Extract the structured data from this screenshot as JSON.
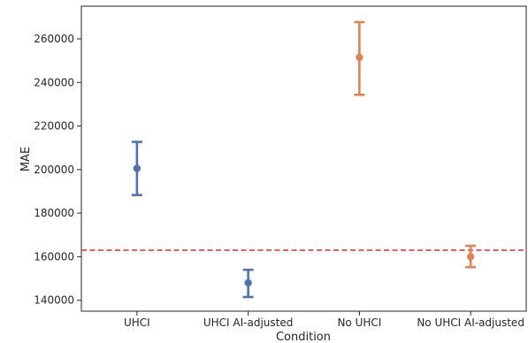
{
  "chart_data": {
    "type": "scatter",
    "subtype": "point-with-error-bars",
    "title": "",
    "xlabel": "Condition",
    "ylabel": "MAE",
    "categories": [
      "UHCI",
      "UHCI AI-adjusted",
      "No UHCI",
      "No UHCI AI-adjusted"
    ],
    "points": [
      {
        "category": "UHCI",
        "value": 200500,
        "lower": 188300,
        "upper": 212700,
        "color": "#4c72b0"
      },
      {
        "category": "UHCI AI-adjusted",
        "value": 148000,
        "lower": 141500,
        "upper": 154000,
        "color": "#4c72b0"
      },
      {
        "category": "No UHCI",
        "value": 251500,
        "lower": 234300,
        "upper": 267700,
        "color": "#dd8452"
      },
      {
        "category": "No UHCI AI-adjusted",
        "value": 160000,
        "lower": 155200,
        "upper": 165000,
        "color": "#dd8452"
      }
    ],
    "reference_line": {
      "value": 163000,
      "style": "dashed",
      "color": "#e8272a"
    },
    "ylim": [
      135000,
      275000
    ],
    "yticks": [
      140000,
      160000,
      180000,
      200000,
      220000,
      240000,
      260000
    ],
    "ytick_labels": [
      "140000",
      "160000",
      "180000",
      "200000",
      "220000",
      "240000",
      "260000"
    ],
    "grid": false,
    "legend": "none"
  }
}
